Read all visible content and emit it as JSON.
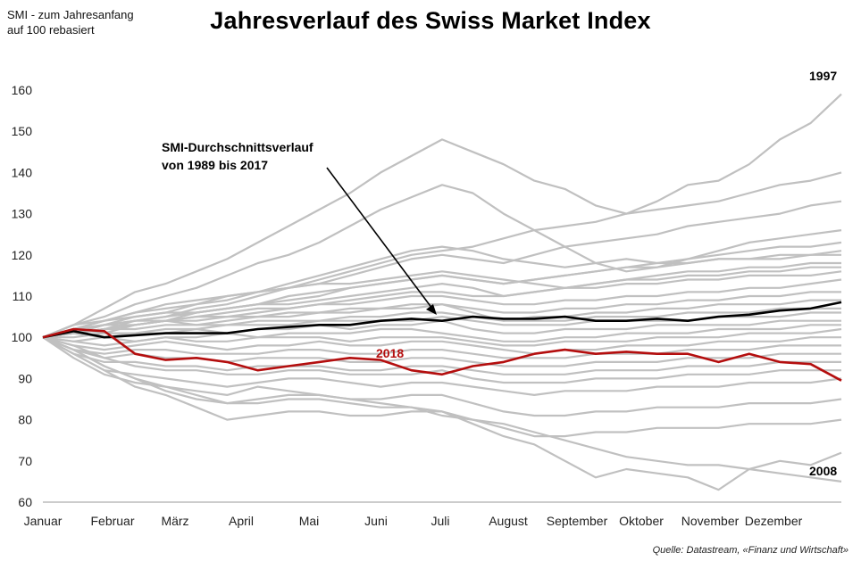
{
  "chart_data": {
    "type": "line",
    "title": "Jahresverlauf des Swiss Market Index",
    "ylabel_note": [
      "SMI - zum Jahresanfang",
      "auf 100 rebasiert"
    ],
    "source": "Quelle: Datastream, «Finanz und Wirtschaft»",
    "months": [
      "Januar",
      "Februar",
      "März",
      "April",
      "Mai",
      "Juni",
      "Juli",
      "August",
      "September",
      "Oktober",
      "November",
      "Dezember"
    ],
    "y_ticks": [
      60,
      70,
      80,
      90,
      100,
      110,
      120,
      130,
      140,
      150,
      160
    ],
    "ylim": [
      60,
      160
    ],
    "colors": {
      "history": "#c0c0c0",
      "average": "#000000",
      "current": "#b40e0e"
    },
    "annotations": {
      "average_label_line1": "SMI-Durchschnittsverlauf",
      "average_label_line2": "von 1989 bis 2017",
      "current_label": "2018",
      "max_year_label": "1997",
      "min_year_label": "2008"
    },
    "series": [
      {
        "name": "SMI-Durchschnittsverlauf 1989-2017",
        "role": "average",
        "values": [
          100,
          101.5,
          100,
          100.5,
          101,
          101,
          101,
          102,
          102.5,
          103,
          103,
          104,
          104.5,
          104,
          105,
          104.5,
          104.5,
          105,
          104,
          104,
          104.5,
          104,
          105,
          105.5,
          106.5,
          107,
          108.5
        ]
      },
      {
        "name": "2018",
        "role": "current",
        "values": [
          100,
          102,
          101.5,
          96,
          94.5,
          95,
          94,
          92,
          93,
          94,
          95,
          94.5,
          92,
          91,
          93,
          94,
          96,
          97,
          96,
          96.5,
          96,
          96,
          94,
          96,
          94,
          93.5,
          89.5
        ]
      },
      {
        "name": "1997",
        "role": "history",
        "values": [
          100,
          103,
          107,
          111,
          113,
          116,
          119,
          123,
          127,
          131,
          135,
          140,
          144,
          148,
          145,
          142,
          138,
          136,
          132,
          130,
          133,
          137,
          138,
          142,
          148,
          152,
          159
        ]
      },
      {
        "name": "2008",
        "role": "history",
        "values": [
          100,
          97,
          93,
          90,
          88,
          87,
          86,
          88,
          87,
          86,
          85,
          84,
          83,
          81,
          80,
          79,
          77,
          75,
          73,
          71,
          70,
          69,
          69,
          68,
          67,
          66,
          65
        ]
      },
      {
        "name": "history-a",
        "role": "history",
        "values": [
          100,
          101,
          103,
          104,
          105,
          107,
          108,
          110,
          112,
          114,
          116,
          118,
          120,
          121,
          122,
          124,
          126,
          127,
          128,
          130,
          131,
          132,
          133,
          135,
          137,
          138,
          140
        ]
      },
      {
        "name": "history-b",
        "role": "history",
        "values": [
          100,
          102,
          104,
          106,
          107,
          108,
          110,
          111,
          112,
          113,
          115,
          117,
          119,
          120,
          119,
          118,
          120,
          122,
          123,
          124,
          125,
          127,
          128,
          129,
          130,
          132,
          133
        ]
      },
      {
        "name": "history-c",
        "role": "history",
        "values": [
          100,
          103,
          105,
          108,
          110,
          112,
          115,
          118,
          120,
          123,
          127,
          131,
          134,
          137,
          135,
          130,
          126,
          122,
          118,
          116,
          117,
          119,
          121,
          123,
          124,
          125,
          126
        ]
      },
      {
        "name": "history-d",
        "role": "history",
        "values": [
          100,
          102,
          103,
          105,
          106,
          108,
          109,
          111,
          113,
          115,
          117,
          119,
          121,
          122,
          121,
          119,
          118,
          117,
          118,
          119,
          118,
          119,
          120,
          121,
          122,
          122,
          123
        ]
      },
      {
        "name": "history-e",
        "role": "history",
        "values": [
          100,
          101,
          102,
          104,
          105,
          106,
          107,
          108,
          110,
          111,
          112,
          113,
          114,
          115,
          114,
          113,
          114,
          115,
          116,
          117,
          118,
          118,
          119,
          119,
          120,
          120,
          121
        ]
      },
      {
        "name": "history-f",
        "role": "history",
        "values": [
          100,
          102,
          104,
          105,
          106,
          106,
          107,
          108,
          108,
          109,
          110,
          111,
          112,
          113,
          112,
          110,
          111,
          112,
          113,
          114,
          115,
          116,
          116,
          117,
          117,
          118,
          118
        ]
      },
      {
        "name": "history-g",
        "role": "history",
        "values": [
          100,
          103,
          104,
          106,
          108,
          109,
          110,
          111,
          112,
          113,
          113,
          114,
          115,
          116,
          115,
          114,
          113,
          112,
          113,
          114,
          114,
          115,
          115,
          116,
          116,
          117,
          117
        ]
      },
      {
        "name": "history-h",
        "role": "history",
        "values": [
          100,
          101,
          102,
          103,
          104,
          105,
          105,
          106,
          107,
          108,
          109,
          110,
          111,
          111,
          110,
          110,
          111,
          112,
          112,
          113,
          113,
          114,
          114,
          115,
          115,
          115,
          116
        ]
      },
      {
        "name": "history-i",
        "role": "history",
        "values": [
          100,
          102,
          103,
          104,
          104,
          105,
          106,
          107,
          107,
          108,
          108,
          109,
          110,
          110,
          109,
          108,
          108,
          109,
          109,
          110,
          110,
          111,
          111,
          112,
          112,
          113,
          114
        ]
      },
      {
        "name": "history-j",
        "role": "history",
        "values": [
          100,
          101,
          103,
          103,
          104,
          104,
          105,
          105,
          106,
          106,
          107,
          107,
          108,
          108,
          107,
          106,
          106,
          107,
          107,
          108,
          108,
          109,
          109,
          110,
          110,
          111,
          111
        ]
      },
      {
        "name": "history-k",
        "role": "history",
        "values": [
          100,
          102,
          101,
          103,
          104,
          103,
          104,
          105,
          105,
          106,
          106,
          107,
          107,
          108,
          106,
          104,
          105,
          105,
          106,
          106,
          107,
          107,
          108,
          108,
          108,
          109,
          109
        ]
      },
      {
        "name": "history-l",
        "role": "history",
        "values": [
          100,
          101,
          102,
          102,
          103,
          103,
          103,
          104,
          104,
          104,
          105,
          105,
          106,
          106,
          105,
          104,
          104,
          104,
          105,
          105,
          105,
          106,
          106,
          106,
          107,
          107,
          107
        ]
      },
      {
        "name": "history-m",
        "role": "history",
        "values": [
          100,
          100,
          101,
          101,
          102,
          102,
          103,
          103,
          103,
          104,
          104,
          104,
          104,
          105,
          104,
          103,
          103,
          103,
          104,
          104,
          104,
          104,
          105,
          105,
          105,
          106,
          106
        ]
      },
      {
        "name": "history-n",
        "role": "history",
        "values": [
          100,
          99,
          100,
          101,
          101,
          102,
          101,
          102,
          102,
          103,
          102,
          103,
          103,
          104,
          102,
          101,
          101,
          102,
          102,
          102,
          103,
          103,
          103,
          103,
          104,
          104,
          104
        ]
      },
      {
        "name": "history-o",
        "role": "history",
        "values": [
          100,
          101,
          100,
          99,
          100,
          100,
          101,
          100,
          101,
          101,
          101,
          102,
          102,
          101,
          100,
          99,
          99,
          100,
          100,
          101,
          101,
          101,
          102,
          102,
          102,
          103,
          103
        ]
      },
      {
        "name": "history-p",
        "role": "history",
        "values": [
          100,
          99,
          98,
          99,
          100,
          99,
          99,
          100,
          100,
          100,
          99,
          100,
          100,
          100,
          99,
          98,
          98,
          99,
          99,
          99,
          100,
          100,
          100,
          101,
          101,
          101,
          102
        ]
      },
      {
        "name": "history-q",
        "role": "history",
        "values": [
          100,
          98,
          97,
          98,
          99,
          98,
          97,
          98,
          98,
          99,
          98,
          98,
          99,
          99,
          98,
          97,
          96,
          97,
          97,
          98,
          98,
          98,
          99,
          99,
          99,
          100,
          100
        ]
      },
      {
        "name": "history-r",
        "role": "history",
        "values": [
          100,
          97,
          96,
          97,
          97,
          96,
          96,
          96,
          97,
          97,
          96,
          96,
          97,
          97,
          96,
          95,
          95,
          95,
          96,
          96,
          96,
          97,
          97,
          97,
          98,
          98,
          98
        ]
      },
      {
        "name": "history-s",
        "role": "history",
        "values": [
          100,
          97,
          95,
          96,
          95,
          95,
          94,
          95,
          95,
          95,
          94,
          94,
          95,
          95,
          94,
          93,
          93,
          93,
          94,
          94,
          94,
          95,
          95,
          95,
          96,
          96,
          96
        ]
      },
      {
        "name": "history-t",
        "role": "history",
        "values": [
          100,
          96,
          94,
          94,
          93,
          93,
          92,
          93,
          93,
          93,
          92,
          92,
          93,
          93,
          92,
          91,
          91,
          91,
          92,
          92,
          92,
          93,
          93,
          93,
          94,
          94,
          94
        ]
      },
      {
        "name": "history-u",
        "role": "history",
        "values": [
          100,
          98,
          95,
          93,
          92,
          92,
          91,
          91,
          92,
          92,
          91,
          91,
          91,
          92,
          90,
          89,
          89,
          89,
          90,
          90,
          90,
          91,
          91,
          91,
          92,
          92,
          92
        ]
      },
      {
        "name": "history-v",
        "role": "history",
        "values": [
          100,
          96,
          92,
          91,
          90,
          89,
          88,
          89,
          90,
          90,
          89,
          88,
          89,
          89,
          88,
          87,
          86,
          87,
          87,
          87,
          88,
          88,
          88,
          89,
          89,
          89,
          90
        ]
      },
      {
        "name": "history-w",
        "role": "history",
        "values": [
          100,
          95,
          91,
          89,
          88,
          86,
          84,
          85,
          86,
          86,
          85,
          85,
          86,
          86,
          84,
          82,
          81,
          81,
          82,
          82,
          83,
          83,
          83,
          84,
          84,
          84,
          85
        ]
      },
      {
        "name": "history-x",
        "role": "history",
        "values": [
          100,
          96,
          92,
          88,
          86,
          83,
          80,
          81,
          82,
          82,
          81,
          81,
          82,
          82,
          80,
          78,
          76,
          76,
          77,
          77,
          78,
          78,
          78,
          79,
          79,
          79,
          80
        ]
      },
      {
        "name": "history-y",
        "role": "history",
        "values": [
          100,
          97,
          93,
          90,
          87,
          85,
          84,
          84,
          85,
          85,
          84,
          83,
          83,
          82,
          79,
          76,
          74,
          70,
          66,
          68,
          67,
          66,
          63,
          68,
          70,
          69,
          72
        ]
      },
      {
        "name": "history-z",
        "role": "history",
        "values": [
          100,
          101,
          102,
          103,
          104,
          106,
          107,
          108,
          109,
          110,
          112,
          113,
          114,
          115,
          114,
          113,
          114,
          115,
          116,
          117,
          117,
          118,
          119,
          119,
          119,
          120,
          120
        ]
      }
    ]
  }
}
